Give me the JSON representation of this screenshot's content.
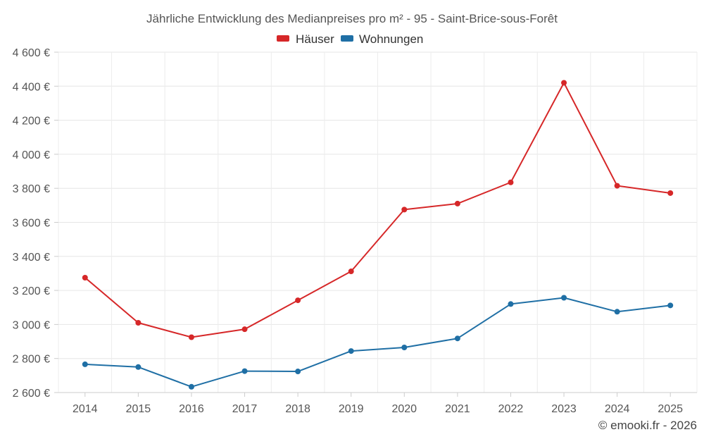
{
  "chart_data": {
    "type": "line",
    "title": "Jährliche Entwicklung des Medianpreises pro m² - 95 - Saint-Brice-sous-Forêt",
    "xlabel": "",
    "ylabel": "",
    "categories": [
      "2014",
      "2015",
      "2016",
      "2017",
      "2018",
      "2019",
      "2020",
      "2021",
      "2022",
      "2023",
      "2024",
      "2025"
    ],
    "ylim": [
      2600,
      4600
    ],
    "yticks": [
      2600,
      2800,
      3000,
      3200,
      3400,
      3600,
      3800,
      4000,
      4200,
      4400,
      4600
    ],
    "ytick_labels": [
      "2 600 €",
      "2 800 €",
      "3 000 €",
      "3 200 €",
      "3 400 €",
      "3 600 €",
      "3 800 €",
      "4 000 €",
      "4 200 €",
      "4 400 €",
      "4 600 €"
    ],
    "grid": true,
    "legend_position": "top-center",
    "series": [
      {
        "name": "Häuser",
        "color": "#d62728",
        "values": [
          3275,
          3010,
          2925,
          2972,
          3142,
          3312,
          3675,
          3710,
          3835,
          4420,
          3815,
          3772
        ]
      },
      {
        "name": "Wohnungen",
        "color": "#1f6fa5",
        "values": [
          2766,
          2750,
          2634,
          2726,
          2724,
          2844,
          2865,
          2918,
          3120,
          3157,
          3075,
          3112
        ]
      }
    ],
    "credit": "© emooki.fr - 2026"
  }
}
